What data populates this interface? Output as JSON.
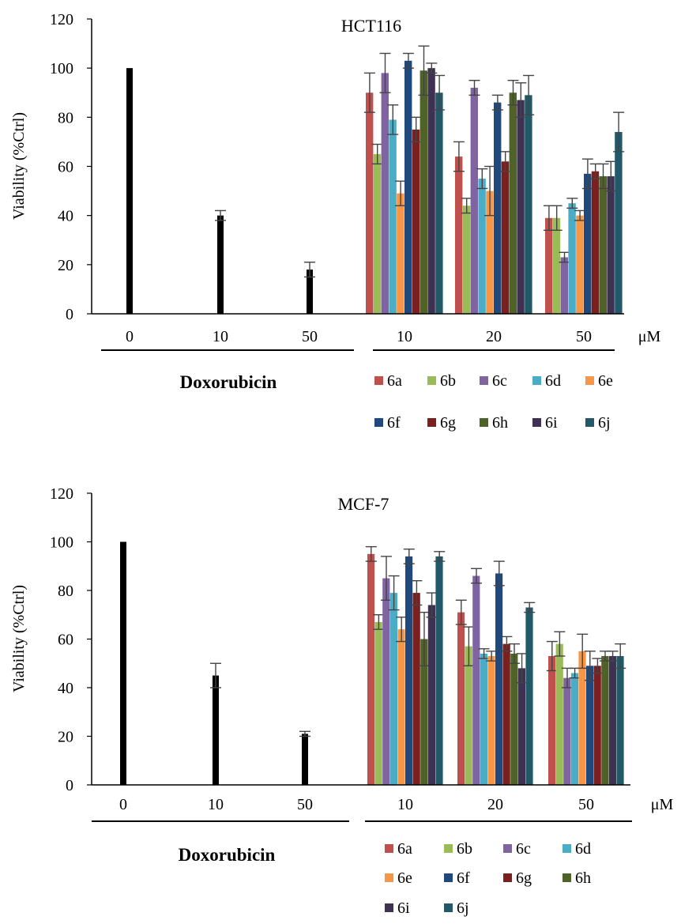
{
  "figure": {
    "unit_label": "μM",
    "treatment_label": "Doxorubicin"
  },
  "series_names": [
    "6a",
    "6b",
    "6c",
    "6d",
    "6e",
    "6f",
    "6g",
    "6h",
    "6i",
    "6j"
  ],
  "series_colors": [
    "#c0504d",
    "#9bbb59",
    "#8064a2",
    "#4bacc6",
    "#f79646",
    "#1f497d",
    "#7b1f1f",
    "#4f6228",
    "#3f3151",
    "#215968"
  ],
  "doxorubicin_color": "#000000",
  "chart_data": [
    {
      "type": "bar",
      "title": "HCT116",
      "ylabel": "Viability (%Ctrl)",
      "ylim": [
        0,
        120
      ],
      "yticks": [
        0,
        20,
        40,
        60,
        80,
        100,
        120
      ],
      "doxorubicin": {
        "categories": [
          "0",
          "10",
          "50"
        ],
        "values": [
          100,
          40,
          18
        ],
        "errors": [
          0,
          2,
          3
        ]
      },
      "compounds": {
        "categories": [
          "10",
          "20",
          "50"
        ],
        "series": [
          {
            "name": "6a",
            "values": [
              90,
              64,
              39
            ],
            "errors": [
              8,
              6,
              5
            ]
          },
          {
            "name": "6b",
            "values": [
              65,
              44,
              39
            ],
            "errors": [
              4,
              3,
              5
            ]
          },
          {
            "name": "6c",
            "values": [
              98,
              92,
              23
            ],
            "errors": [
              8,
              3,
              2
            ]
          },
          {
            "name": "6d",
            "values": [
              79,
              55,
              45
            ],
            "errors": [
              6,
              4,
              2
            ]
          },
          {
            "name": "6e",
            "values": [
              49,
              50,
              40
            ],
            "errors": [
              5,
              10,
              2
            ]
          },
          {
            "name": "6f",
            "values": [
              103,
              86,
              57
            ],
            "errors": [
              3,
              3,
              6
            ]
          },
          {
            "name": "6g",
            "values": [
              75,
              62,
              58
            ],
            "errors": [
              5,
              4,
              3
            ]
          },
          {
            "name": "6h",
            "values": [
              99,
              90,
              56
            ],
            "errors": [
              10,
              5,
              5
            ]
          },
          {
            "name": "6i",
            "values": [
              100,
              87,
              56
            ],
            "errors": [
              2,
              7,
              6
            ]
          },
          {
            "name": "6j",
            "values": [
              90,
              89,
              74
            ],
            "errors": [
              7,
              8,
              8
            ]
          }
        ]
      },
      "legend_rows": [
        [
          "6a",
          "6b",
          "6c",
          "6d",
          "6e"
        ],
        [
          "6f",
          "6g",
          "6h",
          "6i",
          "6j"
        ]
      ]
    },
    {
      "type": "bar",
      "title": "MCF-7",
      "ylabel": "Viability (%Ctrl)",
      "ylim": [
        0,
        120
      ],
      "yticks": [
        0,
        20,
        40,
        60,
        80,
        100,
        120
      ],
      "doxorubicin": {
        "categories": [
          "0",
          "10",
          "50"
        ],
        "values": [
          100,
          45,
          21
        ],
        "errors": [
          0,
          5,
          1
        ]
      },
      "compounds": {
        "categories": [
          "10",
          "20",
          "50"
        ],
        "series": [
          {
            "name": "6a",
            "values": [
              95,
              71,
              53
            ],
            "errors": [
              3,
              5,
              6
            ]
          },
          {
            "name": "6b",
            "values": [
              67,
              57,
              58
            ],
            "errors": [
              3,
              8,
              5
            ]
          },
          {
            "name": "6c",
            "values": [
              85,
              86,
              44
            ],
            "errors": [
              9,
              3,
              4
            ]
          },
          {
            "name": "6d",
            "values": [
              79,
              54,
              46
            ],
            "errors": [
              7,
              2,
              2
            ]
          },
          {
            "name": "6e",
            "values": [
              64,
              53,
              55
            ],
            "errors": [
              5,
              2,
              7
            ]
          },
          {
            "name": "6f",
            "values": [
              94,
              87,
              49
            ],
            "errors": [
              3,
              5,
              6
            ]
          },
          {
            "name": "6g",
            "values": [
              79,
              58,
              49
            ],
            "errors": [
              5,
              3,
              3
            ]
          },
          {
            "name": "6h",
            "values": [
              60,
              54,
              53
            ],
            "errors": [
              11,
              4,
              2
            ]
          },
          {
            "name": "6i",
            "values": [
              74,
              48,
              53
            ],
            "errors": [
              5,
              6,
              2
            ]
          },
          {
            "name": "6j",
            "values": [
              94,
              73,
              53
            ],
            "errors": [
              2,
              2,
              5
            ]
          }
        ]
      },
      "legend_rows": [
        [
          "6a",
          "6b",
          "6c",
          "6d"
        ],
        [
          "6e",
          "6f",
          "6g",
          "6h"
        ],
        [
          "6i",
          "6j"
        ]
      ]
    }
  ]
}
